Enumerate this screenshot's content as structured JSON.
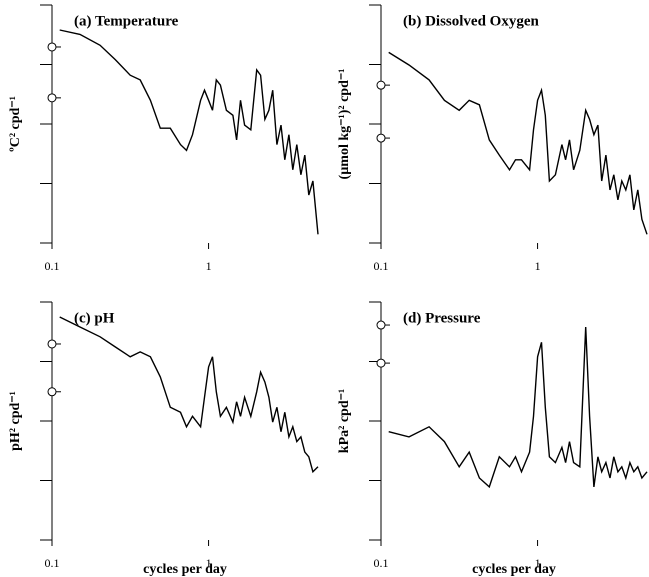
{
  "chart_data": [
    {
      "type": "line",
      "title": "(a) Temperature",
      "y_label": "ºC² cpd⁻¹",
      "log_x": true,
      "log_y": true,
      "color": "#000000",
      "x": [
        0.112,
        0.151,
        0.203,
        0.254,
        0.316,
        0.366,
        0.425,
        0.492,
        0.57,
        0.662,
        0.723,
        0.789,
        0.889,
        0.942,
        1.0,
        1.06,
        1.12,
        1.19,
        1.3,
        1.43,
        1.51,
        1.6,
        1.7,
        1.86,
        2.03,
        2.15,
        2.29,
        2.43,
        2.57,
        2.73,
        2.9,
        3.07,
        3.26,
        3.45,
        3.66,
        3.89,
        4.12,
        4.37,
        4.64,
        5.0
      ],
      "values": [
        0.38,
        0.32,
        0.21,
        0.12,
        0.066,
        0.055,
        0.025,
        0.0085,
        0.0085,
        0.0045,
        0.0036,
        0.0066,
        0.025,
        0.037,
        0.025,
        0.017,
        0.055,
        0.045,
        0.017,
        0.014,
        0.0054,
        0.025,
        0.0096,
        0.008,
        0.081,
        0.066,
        0.012,
        0.017,
        0.037,
        0.0045,
        0.0096,
        0.0025,
        0.0066,
        0.0017,
        0.0045,
        0.0014,
        0.003,
        0.00064,
        0.0011,
        0.00014
      ],
      "confidence_interval": [
        0.197,
        0.0275
      ],
      "xlim": [
        0.1,
        5
      ],
      "ylim": [
        0.0001,
        1
      ],
      "xticks": [
        0.1,
        1
      ],
      "yticks": [
        0.0001,
        0.001,
        0.01,
        0.1,
        1
      ]
    },
    {
      "type": "line",
      "title": "(b) Dissolved Oxygen",
      "y_label": "(µmol kg⁻¹)² cpd⁻¹",
      "log_x": true,
      "log_y": true,
      "color": "#000000",
      "x": [
        0.112,
        0.151,
        0.203,
        0.254,
        0.316,
        0.366,
        0.425,
        0.492,
        0.57,
        0.662,
        0.723,
        0.789,
        0.889,
        0.942,
        1.0,
        1.06,
        1.12,
        1.19,
        1.3,
        1.43,
        1.51,
        1.6,
        1.7,
        1.86,
        2.03,
        2.15,
        2.29,
        2.43,
        2.57,
        2.73,
        2.9,
        3.07,
        3.26,
        3.45,
        3.66,
        3.89,
        4.12,
        4.37,
        4.64,
        5.0
      ],
      "values": [
        0.16,
        0.098,
        0.055,
        0.025,
        0.017,
        0.025,
        0.021,
        0.0054,
        0.003,
        0.0017,
        0.0025,
        0.0025,
        0.0017,
        0.008,
        0.025,
        0.037,
        0.014,
        0.0011,
        0.0014,
        0.0045,
        0.0025,
        0.0054,
        0.0017,
        0.0036,
        0.017,
        0.012,
        0.0066,
        0.0096,
        0.0011,
        0.003,
        0.00078,
        0.0014,
        0.00053,
        0.0011,
        0.00078,
        0.0014,
        0.00036,
        0.00078,
        0.00025,
        0.00014
      ],
      "confidence_interval": [
        0.045,
        0.0058
      ],
      "xlim": [
        0.1,
        5
      ],
      "ylim": [
        0.0001,
        1
      ],
      "xticks": [
        0.1,
        1
      ],
      "yticks": [
        0.0001,
        0.001,
        0.01,
        0.1,
        1
      ]
    },
    {
      "type": "line",
      "title": "(c) pH",
      "y_label": "pH² cpd⁻¹",
      "x_label": "cycles per day",
      "log_x": true,
      "log_y": true,
      "color": "#000000",
      "x": [
        0.112,
        0.151,
        0.203,
        0.254,
        0.316,
        0.366,
        0.425,
        0.492,
        0.57,
        0.662,
        0.723,
        0.789,
        0.889,
        0.942,
        1.0,
        1.06,
        1.12,
        1.19,
        1.3,
        1.43,
        1.51,
        1.6,
        1.7,
        1.86,
        2.03,
        2.15,
        2.29,
        2.43,
        2.57,
        2.73,
        2.9,
        3.07,
        3.26,
        3.45,
        3.66,
        3.89,
        4.12,
        4.37,
        4.64,
        5.0
      ],
      "values": [
        0.56,
        0.38,
        0.26,
        0.175,
        0.12,
        0.145,
        0.12,
        0.055,
        0.017,
        0.014,
        0.008,
        0.012,
        0.008,
        0.025,
        0.081,
        0.12,
        0.031,
        0.012,
        0.017,
        0.0096,
        0.021,
        0.012,
        0.025,
        0.012,
        0.031,
        0.066,
        0.045,
        0.025,
        0.0096,
        0.017,
        0.0066,
        0.014,
        0.0054,
        0.008,
        0.0045,
        0.0054,
        0.003,
        0.0025,
        0.0014,
        0.0017
      ],
      "confidence_interval": [
        0.197,
        0.031
      ],
      "xlim": [
        0.1,
        5
      ],
      "ylim": [
        0.0001,
        1
      ],
      "xticks": [
        0.1,
        1
      ],
      "yticks": [
        0.0001,
        0.001,
        0.01,
        0.1,
        1
      ]
    },
    {
      "type": "line",
      "title": "(d) Pressure",
      "y_label": "kPa² cpd⁻¹",
      "x_label": "cycles per day",
      "log_x": true,
      "log_y": true,
      "color": "#000000",
      "x": [
        0.112,
        0.151,
        0.203,
        0.254,
        0.316,
        0.366,
        0.425,
        0.492,
        0.57,
        0.662,
        0.723,
        0.789,
        0.889,
        0.942,
        1.0,
        1.06,
        1.12,
        1.19,
        1.3,
        1.43,
        1.51,
        1.6,
        1.7,
        1.86,
        2.03,
        2.15,
        2.29,
        2.43,
        2.57,
        2.73,
        2.9,
        3.07,
        3.26,
        3.45,
        3.66,
        3.89,
        4.12,
        4.37,
        4.64,
        5.0
      ],
      "values": [
        0.0066,
        0.0054,
        0.008,
        0.0045,
        0.0017,
        0.003,
        0.0011,
        0.00078,
        0.0025,
        0.0017,
        0.0025,
        0.0014,
        0.003,
        0.012,
        0.12,
        0.21,
        0.017,
        0.0025,
        0.002,
        0.0036,
        0.002,
        0.0045,
        0.002,
        0.0017,
        0.38,
        0.012,
        0.00078,
        0.0025,
        0.0014,
        0.002,
        0.0011,
        0.0025,
        0.0014,
        0.0017,
        0.0011,
        0.002,
        0.0014,
        0.0017,
        0.0011,
        0.0014
      ],
      "confidence_interval": [
        0.41,
        0.094
      ],
      "xlim": [
        0.1,
        5
      ],
      "ylim": [
        0.0001,
        1
      ],
      "xticks": [
        0.1,
        1
      ],
      "yticks": [
        0.0001,
        0.001,
        0.01,
        0.1,
        1
      ]
    }
  ]
}
